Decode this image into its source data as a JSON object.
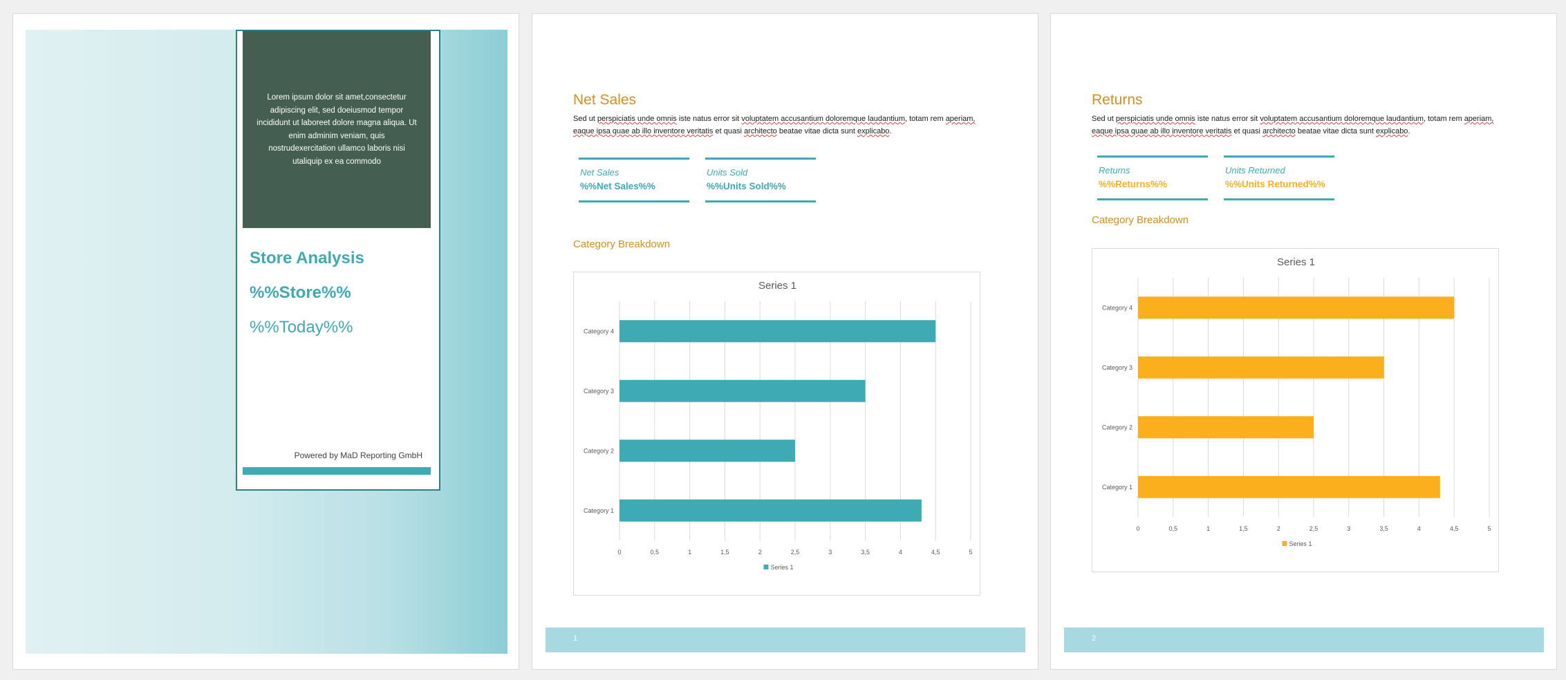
{
  "cover": {
    "lorem": "Lorem ipsum dolor sit amet,consectetur adipiscing elit, sed doeiusmod tempor incididunt ut laboreet dolore magna aliqua. Ut enim adminim veniam, quis nostrudexercitation ullamco laboris nisi utaliquip ex ea commodo",
    "title": "Store Analysis",
    "store": "%%Store%%",
    "today": "%%Today%%",
    "powered": "Powered by MaD Reporting GmbH"
  },
  "net_sales_page": {
    "heading": "Net Sales",
    "body_a": "Sed ut ",
    "body_sq1": "perspiciatis unde omnis",
    "body_b": " iste natus error sit ",
    "body_sq2": "voluptatem accusantium doloremque laudantium",
    "body_c": ", totam rem ",
    "body_sq3": "aperiam, eaque ipsa quae ab illo inventore veritatis",
    "body_d": " et quasi ",
    "body_sq4": "architecto",
    "body_e": " beatae vitae dicta sunt ",
    "body_sq5": "explicabo",
    "body_f": ".",
    "kpis": [
      {
        "label": "Net Sales",
        "value": "%%Net Sales%%"
      },
      {
        "label": "Units Sold",
        "value": "%%Units Sold%%"
      }
    ],
    "category_heading": "Category Breakdown",
    "page_number": "1"
  },
  "returns_page": {
    "heading": "Returns",
    "body_a": "Sed ut ",
    "body_sq1": "perspiciatis unde omnis",
    "body_b": " iste natus error sit ",
    "body_sq2": "voluptatem accusantium doloremque laudantium",
    "body_c": ", totam rem ",
    "body_sq3": "aperiam, eaque ipsa quae ab illo inventore veritatis",
    "body_d": " et quasi ",
    "body_sq4": "architecto",
    "body_e": " beatae  vitae dicta sunt ",
    "body_sq5": "explicabo",
    "body_f": ".",
    "kpis": [
      {
        "label": "Returns",
        "value": "%%Returns%%"
      },
      {
        "label": "Units Returned",
        "value": "%%Units Returned%%"
      }
    ],
    "category_heading": "Category Breakdown",
    "page_number": "2"
  },
  "colors": {
    "teal": "#3daab4",
    "orange": "#fcaf1d",
    "heading_orange": "#d6901a",
    "dark_green": "#445f51"
  },
  "chart_data": [
    {
      "type": "bar",
      "orientation": "horizontal",
      "title": "Series 1",
      "categories": [
        "Category 1",
        "Category 2",
        "Category 3",
        "Category 4"
      ],
      "series": [
        {
          "name": "Series 1",
          "values": [
            4.3,
            2.5,
            3.5,
            4.5
          ]
        }
      ],
      "xlim": [
        0,
        5
      ],
      "ticks": [
        "0",
        "0,5",
        "1",
        "1,5",
        "2",
        "2,5",
        "3",
        "3,5",
        "4",
        "4,5",
        "5"
      ],
      "grid": true,
      "legend": "bottom",
      "color": "#3daab4"
    },
    {
      "type": "bar",
      "orientation": "horizontal",
      "title": "Series 1",
      "categories": [
        "Category 1",
        "Category 2",
        "Category 3",
        "Category 4"
      ],
      "series": [
        {
          "name": "Series 1",
          "values": [
            4.3,
            2.5,
            3.5,
            4.5
          ]
        }
      ],
      "xlim": [
        0,
        5
      ],
      "ticks": [
        "0",
        "0,5",
        "1",
        "1,5",
        "2",
        "2,5",
        "3",
        "3,5",
        "4",
        "4,5",
        "5"
      ],
      "grid": true,
      "legend": "bottom",
      "color": "#fcaf1d"
    }
  ]
}
